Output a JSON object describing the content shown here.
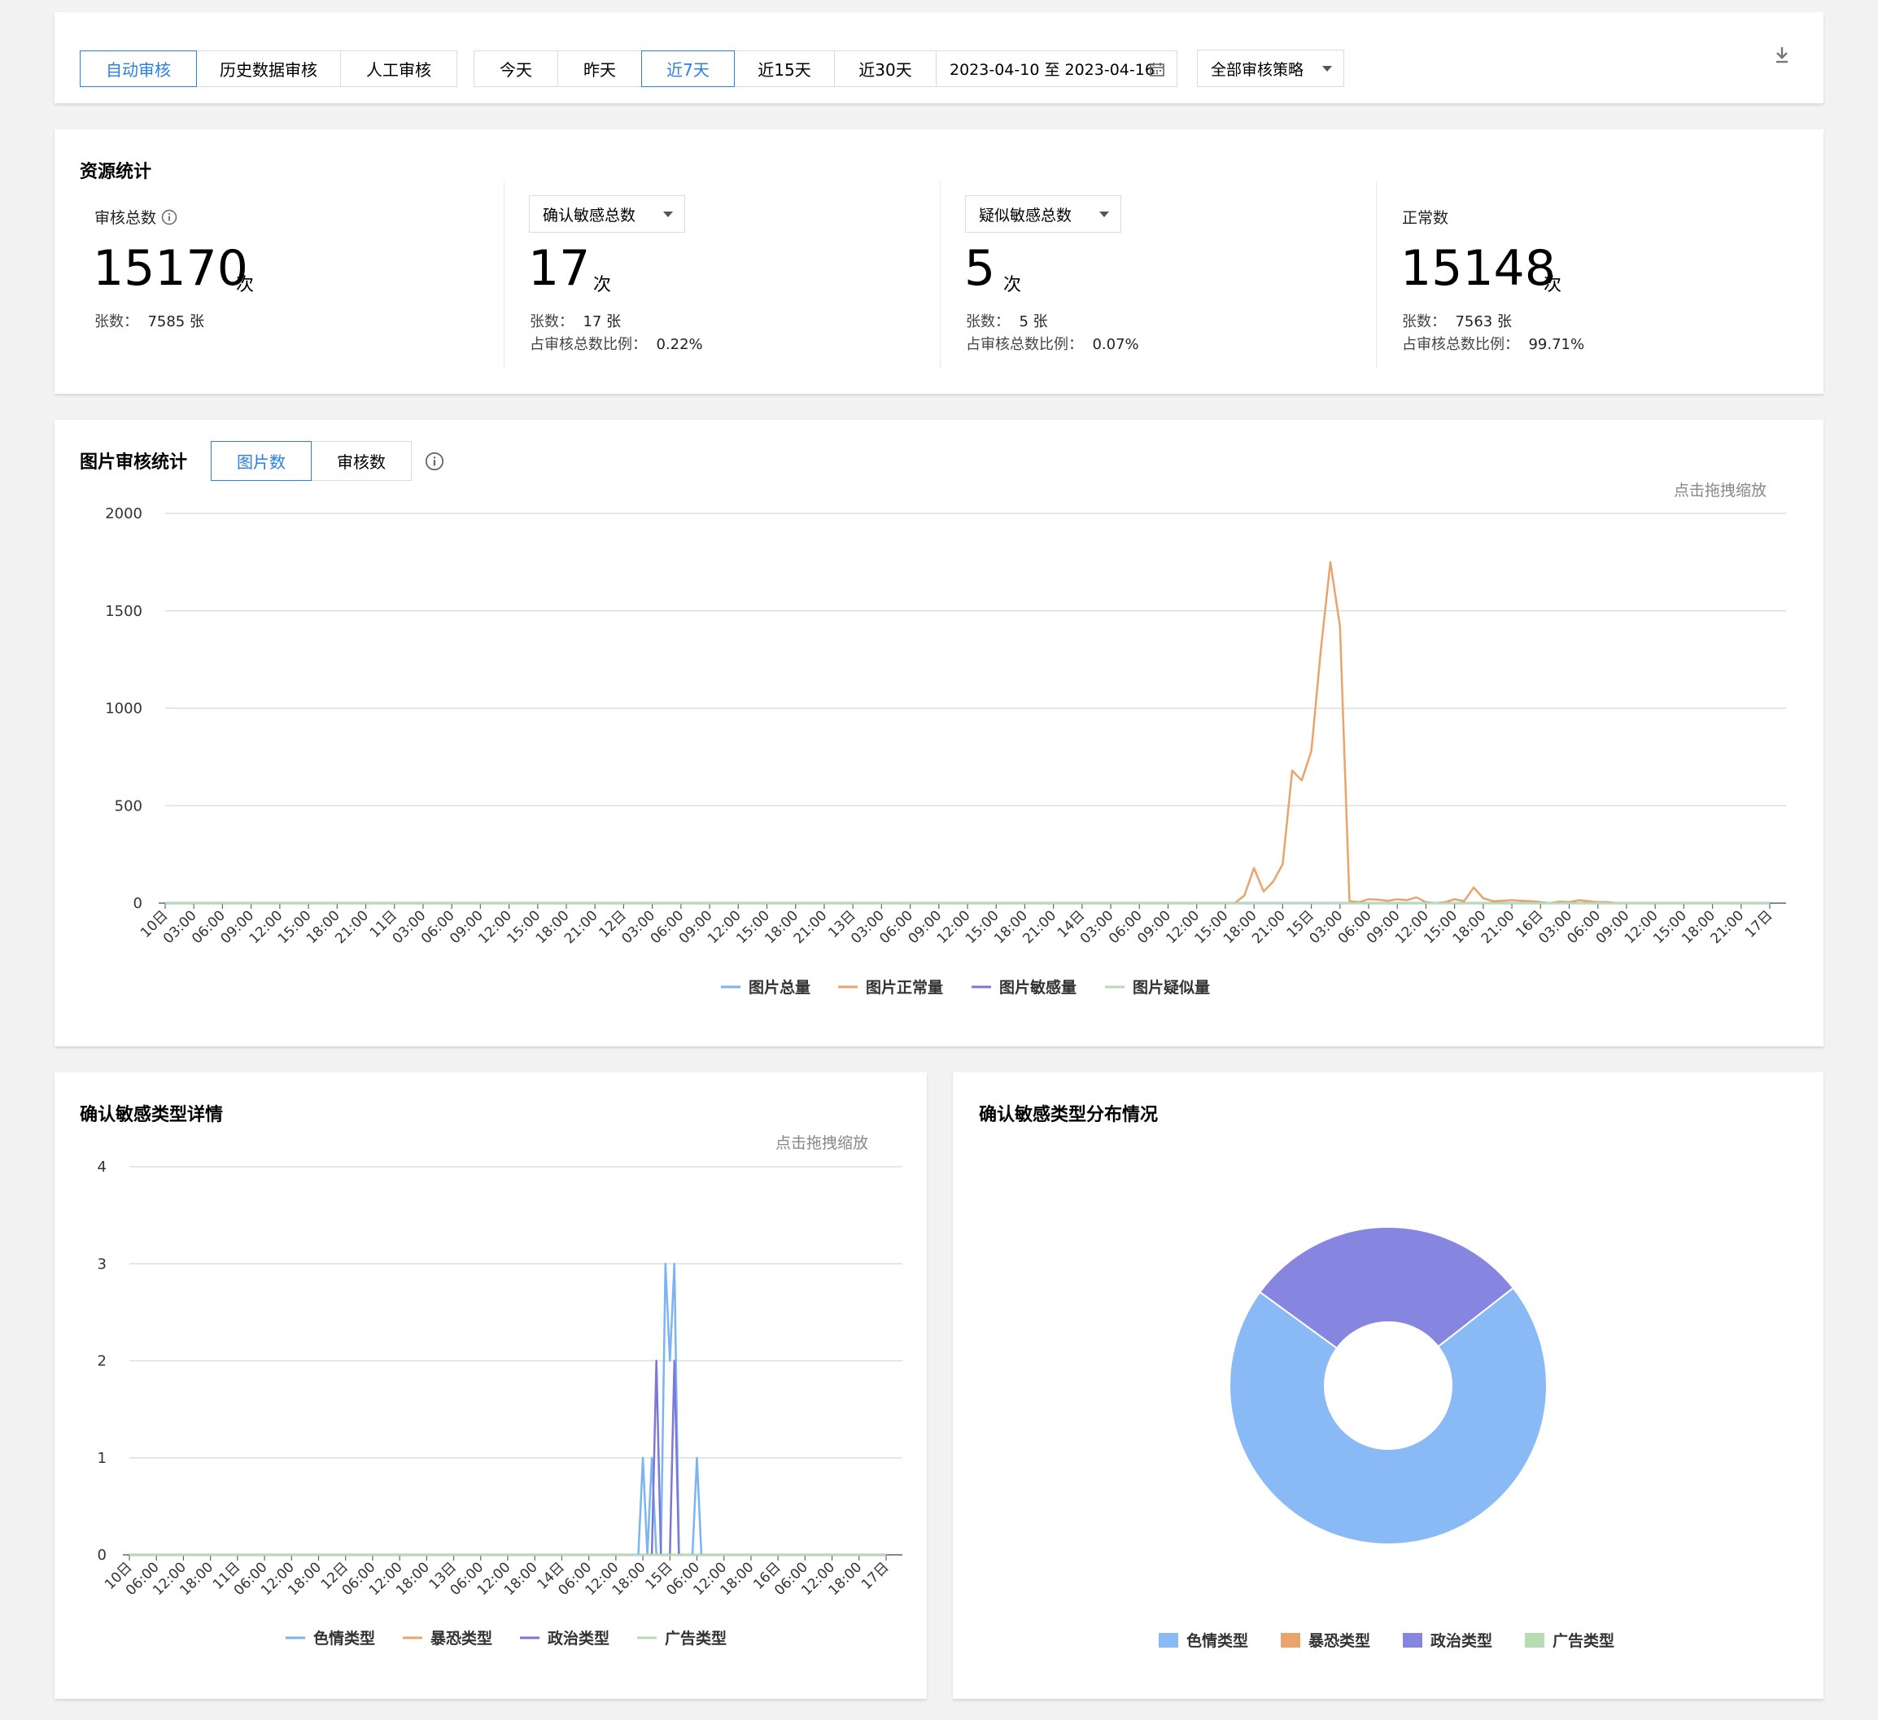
{
  "toolbar": {
    "mode_tabs": [
      "自动审核",
      "历史数据审核",
      "人工审核"
    ],
    "active_mode": 0,
    "range_tabs": [
      "今天",
      "昨天",
      "近7天",
      "近15天",
      "近30天"
    ],
    "active_range": 2,
    "date_range": "2023-04-10 至 2023-04-16",
    "strategy_select": "全部审核策略",
    "icons": {
      "calendar": "calendar-icon",
      "download": "download-icon"
    }
  },
  "stats": {
    "title": "资源统计",
    "total": {
      "label": "审核总数",
      "value": "15170",
      "unit": "次",
      "sheets_label": "张数：",
      "sheets": "7585 张"
    },
    "confirmed": {
      "label": "确认敏感总数",
      "value": "17",
      "unit": "次",
      "sheets_label": "张数：",
      "sheets": "17 张",
      "ratio_label": "占审核总数比例：",
      "ratio": "0.22%"
    },
    "suspected": {
      "label": "疑似敏感总数",
      "value": "5",
      "unit": "次",
      "sheets_label": "张数：",
      "sheets": "5 张",
      "ratio_label": "占审核总数比例：",
      "ratio": "0.07%"
    },
    "normal": {
      "label": "正常数",
      "value": "15148",
      "unit": "次",
      "sheets_label": "张数：",
      "sheets": "7563 张",
      "ratio_label": "占审核总数比例：",
      "ratio": "99.71%"
    }
  },
  "image_stats": {
    "title": "图片审核统计",
    "tabs": [
      "图片数",
      "审核数"
    ],
    "active_tab": 0,
    "zoom_hint": "点击拖拽缩放"
  },
  "detail": {
    "title": "确认敏感类型详情",
    "zoom_hint": "点击拖拽缩放"
  },
  "distribution": {
    "title": "确认敏感类型分布情况"
  },
  "chart_data": [
    {
      "type": "line",
      "ylim": [
        0,
        2000
      ],
      "y_ticks": [
        0,
        500,
        1000,
        1500,
        2000
      ],
      "x_tick_labels": [
        "10日",
        "03:00",
        "06:00",
        "09:00",
        "12:00",
        "15:00",
        "18:00",
        "21:00",
        "11日",
        "03:00",
        "06:00",
        "09:00",
        "12:00",
        "15:00",
        "18:00",
        "21:00",
        "12日",
        "03:00",
        "06:00",
        "09:00",
        "12:00",
        "15:00",
        "18:00",
        "21:00",
        "13日",
        "03:00",
        "06:00",
        "09:00",
        "12:00",
        "15:00",
        "18:00",
        "21:00",
        "14日",
        "03:00",
        "06:00",
        "09:00",
        "12:00",
        "15:00",
        "18:00",
        "21:00",
        "15日",
        "03:00",
        "06:00",
        "09:00",
        "12:00",
        "15:00",
        "18:00",
        "21:00",
        "16日",
        "03:00",
        "06:00",
        "09:00",
        "12:00",
        "15:00",
        "18:00",
        "21:00",
        "17日"
      ],
      "colors": [
        "#7ab4f2",
        "#e9a46c",
        "#7b78d8",
        "#b6dcb3"
      ],
      "series": [
        {
          "name": "图片总量",
          "points": [
            [
              0,
              0
            ],
            [
              168,
              0
            ]
          ]
        },
        {
          "name": "图片正常量",
          "points": [
            [
              0,
              0
            ],
            [
              112,
              0
            ],
            [
              113,
              40
            ],
            [
              114,
              180
            ],
            [
              115,
              60
            ],
            [
              116,
              110
            ],
            [
              117,
              200
            ],
            [
              118,
              680
            ],
            [
              119,
              630
            ],
            [
              120,
              780
            ],
            [
              121,
              1300
            ],
            [
              122,
              1750
            ],
            [
              123,
              1420
            ],
            [
              124,
              10
            ],
            [
              125,
              5
            ],
            [
              126,
              20
            ],
            [
              127,
              18
            ],
            [
              128,
              12
            ],
            [
              129,
              20
            ],
            [
              130,
              15
            ],
            [
              131,
              30
            ],
            [
              132,
              5
            ],
            [
              133,
              0
            ],
            [
              134,
              5
            ],
            [
              135,
              20
            ],
            [
              136,
              10
            ],
            [
              137,
              80
            ],
            [
              138,
              25
            ],
            [
              139,
              10
            ],
            [
              140,
              12
            ],
            [
              141,
              15
            ],
            [
              142,
              12
            ],
            [
              143,
              10
            ],
            [
              144,
              5
            ],
            [
              145,
              0
            ],
            [
              146,
              8
            ],
            [
              147,
              5
            ],
            [
              148,
              15
            ],
            [
              149,
              10
            ],
            [
              150,
              5
            ],
            [
              151,
              5
            ],
            [
              152,
              0
            ],
            [
              168,
              0
            ]
          ]
        },
        {
          "name": "图片敏感量",
          "points": [
            [
              0,
              0
            ],
            [
              168,
              0
            ]
          ]
        },
        {
          "name": "图片疑似量",
          "points": [
            [
              0,
              0
            ],
            [
              168,
              0
            ]
          ]
        }
      ]
    },
    {
      "type": "line",
      "ylim": [
        0,
        4
      ],
      "y_ticks": [
        0,
        1,
        2,
        3,
        4
      ],
      "x_tick_labels": [
        "10日",
        "06:00",
        "12:00",
        "18:00",
        "11日",
        "06:00",
        "12:00",
        "18:00",
        "12日",
        "06:00",
        "12:00",
        "18:00",
        "13日",
        "06:00",
        "12:00",
        "18:00",
        "14日",
        "06:00",
        "12:00",
        "18:00",
        "15日",
        "06:00",
        "12:00",
        "18:00",
        "16日",
        "06:00",
        "12:00",
        "18:00",
        "17日"
      ],
      "colors": [
        "#7ab4f2",
        "#e9a46c",
        "#7b78d8",
        "#b6dcb3"
      ],
      "series": [
        {
          "name": "色情类型",
          "points": [
            [
              0,
              0
            ],
            [
              113,
              0
            ],
            [
              114,
              1
            ],
            [
              115,
              0
            ],
            [
              116,
              1
            ],
            [
              117,
              0
            ],
            [
              118,
              0
            ],
            [
              119,
              3
            ],
            [
              120,
              2
            ],
            [
              121,
              3
            ],
            [
              122,
              0
            ],
            [
              124,
              0
            ],
            [
              125,
              0
            ],
            [
              126,
              1
            ],
            [
              127,
              0
            ],
            [
              168,
              0
            ]
          ]
        },
        {
          "name": "暴恐类型",
          "points": [
            [
              0,
              0
            ],
            [
              168,
              0
            ]
          ]
        },
        {
          "name": "政治类型",
          "points": [
            [
              0,
              0
            ],
            [
              116,
              0
            ],
            [
              117,
              2
            ],
            [
              118,
              0
            ],
            [
              120,
              0
            ],
            [
              121,
              2
            ],
            [
              122,
              0
            ],
            [
              168,
              0
            ]
          ]
        },
        {
          "name": "广告类型",
          "points": [
            [
              0,
              0
            ],
            [
              168,
              0
            ]
          ]
        }
      ]
    },
    {
      "type": "pie",
      "colors": [
        "#8abaf6",
        "#e9a46c",
        "#8686e0",
        "#b6dcb3"
      ],
      "series": [
        {
          "name": "色情类型",
          "value": 12
        },
        {
          "name": "暴恐类型",
          "value": 0
        },
        {
          "name": "政治类型",
          "value": 5
        },
        {
          "name": "广告类型",
          "value": 0
        }
      ]
    }
  ]
}
